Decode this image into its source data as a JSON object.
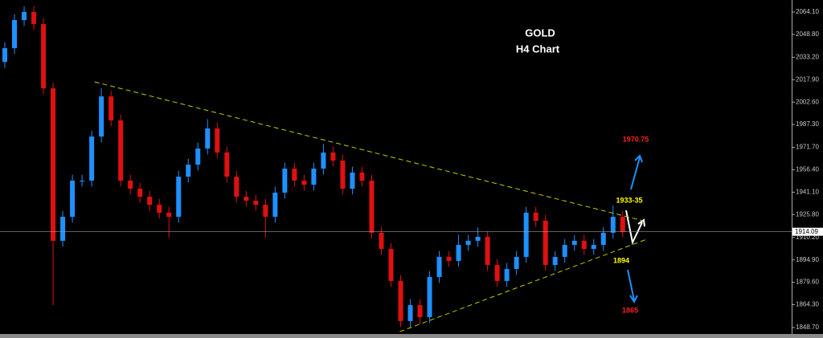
{
  "chart_data": {
    "type": "candlestick",
    "title": "GOLD",
    "subtitle": "H4 Chart",
    "up_color": "#1e90ff",
    "down_color": "#e01010",
    "x": [
      0,
      1,
      2,
      3,
      4,
      5,
      6,
      7,
      8,
      9,
      10,
      11,
      12,
      13,
      14,
      15,
      16,
      17,
      18,
      19,
      20,
      21,
      22,
      23,
      24,
      25,
      26,
      27,
      28,
      29,
      30,
      31,
      32,
      33,
      34,
      35,
      36,
      37,
      38,
      39,
      40,
      41,
      42,
      43,
      44,
      45,
      46,
      47,
      48,
      49,
      50,
      51,
      52,
      53,
      54,
      55,
      56,
      57,
      58,
      59,
      60,
      61,
      62,
      63,
      64
    ],
    "open": [
      2030.0,
      2039.4,
      2058.6,
      2064.1,
      2055.9,
      2012.0,
      1907.9,
      1924.3,
      1949.0,
      1949.0,
      1979.1,
      2006.5,
      1990.1,
      1949.0,
      1943.5,
      1938.0,
      1932.5,
      1927.1,
      1924.3,
      1951.7,
      1959.9,
      1970.9,
      1984.6,
      1968.2,
      1951.7,
      1938.0,
      1935.3,
      1932.5,
      1924.3,
      1940.8,
      1957.2,
      1949.0,
      1946.2,
      1957.2,
      1968.2,
      1962.7,
      1943.5,
      1954.5,
      1949.0,
      1913.4,
      1902.4,
      1880.5,
      1853.1,
      1864.0,
      1855.8,
      1883.2,
      1896.9,
      1894.2,
      1905.1,
      1907.9,
      1910.6,
      1891.4,
      1880.5,
      1888.7,
      1896.9,
      1927.1,
      1921.6,
      1891.4,
      1896.9,
      1905.1,
      1907.9,
      1902.4,
      1905.1,
      1913.4,
      1924.3
    ],
    "high": [
      2043.4,
      2062.6,
      2068.1,
      2068.1,
      2059.9,
      2016.0,
      1928.3,
      1953.0,
      1953.0,
      1983.1,
      2012.0,
      2010.5,
      1994.1,
      1953.0,
      1947.5,
      1942.0,
      1936.5,
      1931.1,
      1955.7,
      1963.9,
      1974.9,
      1991.0,
      1988.6,
      1972.2,
      1955.7,
      1942.0,
      1939.3,
      1936.5,
      1944.8,
      1961.2,
      1961.2,
      1953.0,
      1961.2,
      1974.0,
      1972.2,
      1966.7,
      1958.5,
      1958.5,
      1953.0,
      1917.4,
      1906.4,
      1884.5,
      1868.0,
      1868.0,
      1887.2,
      1900.9,
      1900.9,
      1912.0,
      1911.9,
      1917.0,
      1914.6,
      1895.4,
      1892.7,
      1900.9,
      1931.1,
      1931.1,
      1925.6,
      1900.9,
      1909.1,
      1911.9,
      1911.9,
      1909.1,
      1917.4,
      1932.0,
      1928.3
    ],
    "low": [
      2026.0,
      2035.4,
      2054.6,
      2051.9,
      2008.0,
      1864.0,
      1903.9,
      1920.3,
      1945.0,
      1945.0,
      1975.1,
      1986.1,
      1945.0,
      1939.5,
      1934.0,
      1928.5,
      1923.1,
      1910.0,
      1920.3,
      1947.7,
      1955.9,
      1966.9,
      1964.2,
      1947.7,
      1934.0,
      1931.3,
      1928.5,
      1910.0,
      1920.3,
      1936.8,
      1945.0,
      1942.2,
      1942.2,
      1953.2,
      1958.7,
      1939.5,
      1939.5,
      1945.0,
      1909.4,
      1898.4,
      1876.5,
      1849.0,
      1849.1,
      1851.0,
      1851.8,
      1879.2,
      1890.2,
      1890.2,
      1901.1,
      1903.9,
      1887.4,
      1876.5,
      1876.5,
      1884.7,
      1892.9,
      1917.6,
      1887.4,
      1887.4,
      1892.9,
      1901.1,
      1898.4,
      1898.4,
      1901.1,
      1909.4,
      1910.4
    ],
    "close": [
      2039.4,
      2058.6,
      2064.1,
      2055.9,
      2012.0,
      1907.9,
      1924.3,
      1949.0,
      1949.0,
      1979.1,
      2006.5,
      1990.1,
      1949.0,
      1943.5,
      1938.0,
      1932.5,
      1927.1,
      1924.3,
      1951.7,
      1959.9,
      1970.9,
      1984.6,
      1968.2,
      1951.7,
      1938.0,
      1935.3,
      1932.5,
      1924.3,
      1940.8,
      1957.2,
      1949.0,
      1946.2,
      1957.2,
      1968.2,
      1962.7,
      1943.5,
      1954.5,
      1949.0,
      1913.4,
      1902.4,
      1880.5,
      1853.1,
      1864.0,
      1855.8,
      1883.2,
      1896.9,
      1894.2,
      1905.1,
      1907.9,
      1910.6,
      1891.4,
      1880.5,
      1888.7,
      1896.9,
      1927.1,
      1921.6,
      1891.4,
      1896.9,
      1905.1,
      1907.9,
      1902.4,
      1905.1,
      1913.4,
      1924.3,
      1914.09
    ],
    "xlim": [
      -0.5,
      81.5
    ],
    "ylim": [
      1844.3,
      2072.3
    ],
    "yticks": [
      {
        "value": 2064.1,
        "label": "2064.10"
      },
      {
        "value": 2048.8,
        "label": "2048.80"
      },
      {
        "value": 2033.2,
        "label": "2033.20"
      },
      {
        "value": 2017.9,
        "label": "2017.90"
      },
      {
        "value": 2002.6,
        "label": "2002.60"
      },
      {
        "value": 1987.3,
        "label": "1987.30"
      },
      {
        "value": 1971.7,
        "label": "1971.70"
      },
      {
        "value": 1956.4,
        "label": "1956.40"
      },
      {
        "value": 1941.1,
        "label": "1941.10"
      },
      {
        "value": 1925.8,
        "label": "1925.80"
      },
      {
        "value": 1910.2,
        "label": "1910.20"
      },
      {
        "value": 1894.9,
        "label": "1894.90"
      },
      {
        "value": 1879.6,
        "label": "1879.60"
      },
      {
        "value": 1864.3,
        "label": "1864.30"
      },
      {
        "value": 1848.7,
        "label": "1848.70"
      }
    ],
    "last_price": 1914.09,
    "trendlines": [
      {
        "color": "#c8c800",
        "x": [
          9.3,
          66.1
        ],
        "y": [
          2016.4,
          1921.6
        ]
      },
      {
        "color": "#c8c800",
        "x": [
          40.9,
          66.5
        ],
        "y": [
          1845.9,
          1909.0
        ]
      }
    ],
    "annotations": [
      {
        "text": "1970.75",
        "color": "#ff2020"
      },
      {
        "text": "1933-35",
        "color": "#ffff00"
      },
      {
        "text": "1894",
        "color": "#ffff00"
      },
      {
        "text": "1865",
        "color": "#ff2020"
      }
    ]
  }
}
